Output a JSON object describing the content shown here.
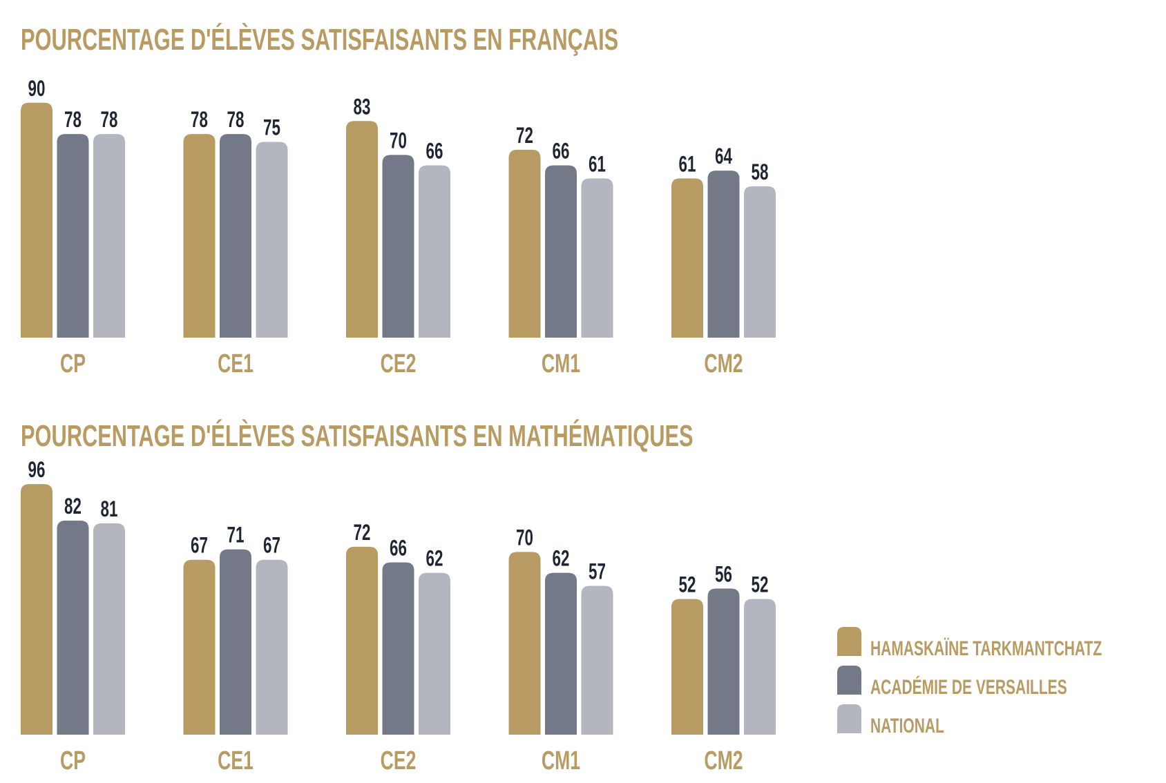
{
  "chart_data": [
    {
      "type": "bar",
      "title": "POURCENTAGE D'ÉLÈVES SATISFAISANTS EN FRANÇAIS",
      "categories": [
        "CP",
        "CE1",
        "CE2",
        "CM1",
        "CM2"
      ],
      "series": [
        {
          "name": "HAMASKAÏNE TARKMANTCHATZ",
          "color": "#b89b62",
          "values": [
            90,
            78,
            83,
            72,
            61
          ]
        },
        {
          "name": "ACADÉMIE DE VERSAILLES",
          "color": "#737986",
          "values": [
            78,
            78,
            70,
            66,
            64
          ]
        },
        {
          "name": "NATIONAL",
          "color": "#b3b6be",
          "values": [
            78,
            75,
            66,
            61,
            58
          ]
        }
      ],
      "xlabel": "",
      "ylabel": "",
      "ylim": [
        0,
        100
      ],
      "grid": false
    },
    {
      "type": "bar",
      "title": "POURCENTAGE D'ÉLÈVES SATISFAISANTS EN MATHÉMATIQUES",
      "categories": [
        "CP",
        "CE1",
        "CE2",
        "CM1",
        "CM2"
      ],
      "series": [
        {
          "name": "HAMASKAÏNE TARKMANTCHATZ",
          "color": "#b89b62",
          "values": [
            96,
            67,
            72,
            70,
            52
          ]
        },
        {
          "name": "ACADÉMIE DE VERSAILLES",
          "color": "#737986",
          "values": [
            82,
            71,
            66,
            62,
            56
          ]
        },
        {
          "name": "NATIONAL",
          "color": "#b3b6be",
          "values": [
            81,
            67,
            62,
            57,
            52
          ]
        }
      ],
      "xlabel": "",
      "ylabel": "",
      "ylim": [
        0,
        100
      ],
      "grid": false
    }
  ],
  "legend": {
    "placement": "bottom-right",
    "items": [
      {
        "label": "HAMASKAÏNE TARKMANTCHATZ",
        "color": "#b89b62"
      },
      {
        "label": "ACADÉMIE DE VERSAILLES",
        "color": "#737986"
      },
      {
        "label": "NATIONAL",
        "color": "#b3b6be"
      }
    ]
  }
}
